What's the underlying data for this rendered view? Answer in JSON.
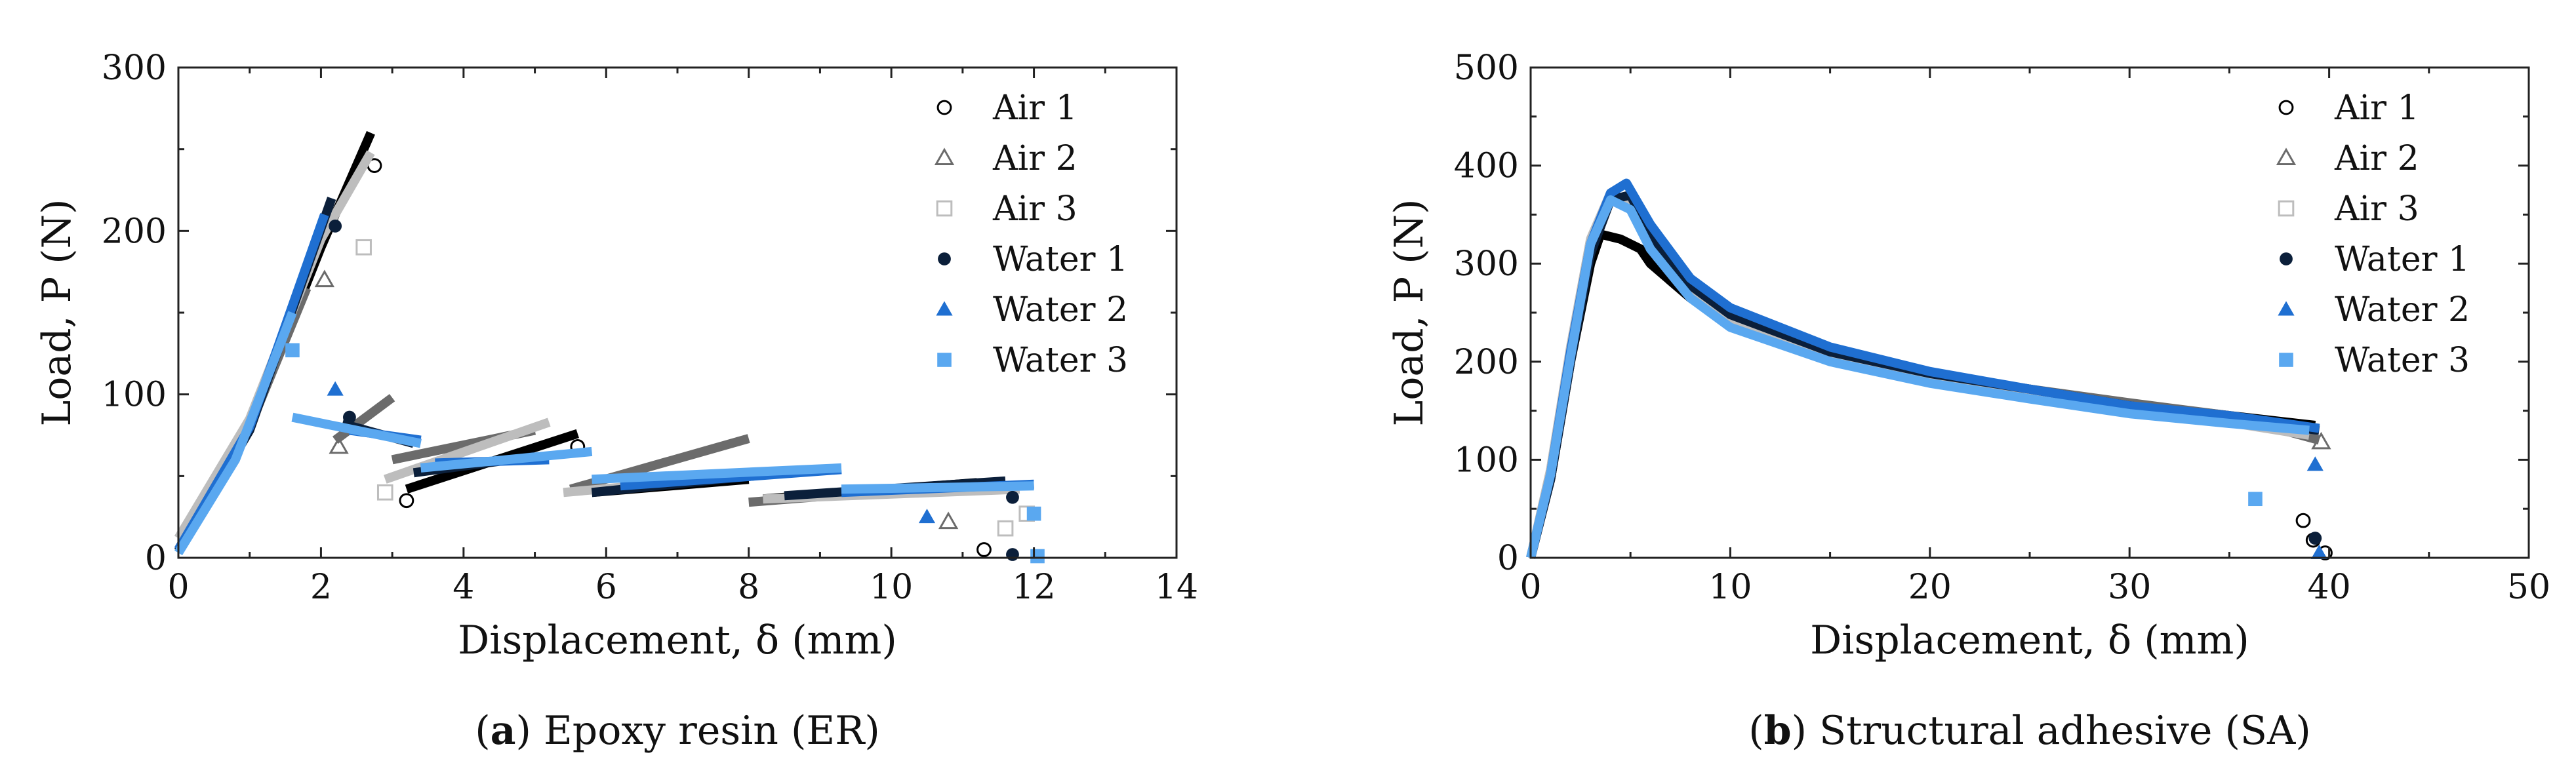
{
  "chart_data": [
    {
      "type": "line",
      "panel": "a",
      "caption": {
        "letter": "a",
        "text": " Epoxy resin (ER)"
      },
      "xlabel": "Displacement, δ (mm)",
      "ylabel": "Load, P (N)",
      "xlim": [
        0,
        14
      ],
      "ylim": [
        0,
        300
      ],
      "xticks": [
        0,
        2,
        4,
        6,
        8,
        10,
        12,
        14
      ],
      "yticks": [
        0,
        100,
        200,
        300
      ],
      "legend_position": "top-right",
      "grid": false,
      "series": [
        {
          "name": "Air 1",
          "color": "#000000",
          "marker": "open-circle",
          "segments": [
            [
              [
                0,
                5
              ],
              [
                1.0,
                80
              ],
              [
                2.0,
                190
              ],
              [
                2.7,
                260
              ]
            ],
            [
              [
                3.2,
                42
              ],
              [
                5.6,
                76
              ]
            ],
            [
              [
                5.8,
                40
              ],
              [
                8.0,
                48
              ]
            ],
            [
              [
                8.2,
                36
              ],
              [
                11.2,
                46
              ]
            ]
          ],
          "markers": [
            [
              2.75,
              240
            ],
            [
              3.2,
              35
            ],
            [
              5.6,
              68
            ],
            [
              11.3,
              5
            ]
          ]
        },
        {
          "name": "Air 2",
          "color": "#6b6b6b",
          "marker": "open-triangle",
          "segments": [
            [
              [
                0,
                4
              ],
              [
                1.0,
                80
              ],
              [
                1.8,
                165
              ]
            ],
            [
              [
                2.2,
                72
              ],
              [
                3.0,
                98
              ]
            ],
            [
              [
                3.0,
                60
              ],
              [
                5.0,
                78
              ]
            ],
            [
              [
                5.5,
                42
              ],
              [
                8.0,
                73
              ]
            ],
            [
              [
                8.0,
                34
              ],
              [
                11.2,
                45
              ]
            ]
          ],
          "markers": [
            [
              2.05,
              170
            ],
            [
              2.25,
              68
            ],
            [
              10.8,
              22
            ]
          ]
        },
        {
          "name": "Air 3",
          "color": "#bdbdbd",
          "marker": "open-square",
          "segments": [
            [
              [
                0,
                12
              ],
              [
                1.0,
                85
              ],
              [
                2.0,
                195
              ],
              [
                2.7,
                248
              ]
            ],
            [
              [
                2.9,
                48
              ],
              [
                5.2,
                83
              ]
            ],
            [
              [
                5.4,
                40
              ],
              [
                8.0,
                50
              ]
            ],
            [
              [
                8.2,
                36
              ],
              [
                11.8,
                42
              ]
            ]
          ],
          "markers": [
            [
              2.6,
              190
            ],
            [
              2.9,
              40
            ],
            [
              11.6,
              18
            ],
            [
              11.9,
              27
            ]
          ]
        },
        {
          "name": "Water 1",
          "color": "#0b1f3a",
          "marker": "filled-circle",
          "segments": [
            [
              [
                0,
                4
              ],
              [
                1.0,
                78
              ],
              [
                2.15,
                220
              ]
            ],
            [
              [
                2.3,
                82
              ],
              [
                3.3,
                70
              ]
            ],
            [
              [
                3.3,
                52
              ],
              [
                5.0,
                62
              ]
            ],
            [
              [
                5.8,
                40
              ],
              [
                8.5,
                52
              ]
            ],
            [
              [
                8.5,
                38
              ],
              [
                11.6,
                47
              ]
            ]
          ],
          "markers": [
            [
              2.2,
              203
            ],
            [
              2.4,
              86
            ],
            [
              11.7,
              37
            ],
            [
              11.7,
              2
            ]
          ]
        },
        {
          "name": "Water 2",
          "color": "#1f6fd1",
          "marker": "filled-triangle",
          "segments": [
            [
              [
                0,
                5
              ],
              [
                1.0,
                80
              ],
              [
                2.05,
                210
              ]
            ],
            [
              [
                2.4,
                78
              ],
              [
                3.4,
                72
              ]
            ],
            [
              [
                3.6,
                58
              ],
              [
                5.2,
                60
              ]
            ],
            [
              [
                6.2,
                44
              ],
              [
                9.3,
                54
              ]
            ],
            [
              [
                9.3,
                40
              ],
              [
                12.0,
                45
              ]
            ]
          ],
          "markers": [
            [
              2.2,
              103
            ],
            [
              10.5,
              25
            ]
          ]
        },
        {
          "name": "Water 3",
          "color": "#5aa8f0",
          "marker": "filled-square",
          "segments": [
            [
              [
                0,
                3
              ],
              [
                0.8,
                60
              ],
              [
                1.6,
                150
              ]
            ],
            [
              [
                1.6,
                86
              ],
              [
                3.4,
                70
              ]
            ],
            [
              [
                3.4,
                55
              ],
              [
                5.8,
                65
              ]
            ],
            [
              [
                5.8,
                48
              ],
              [
                9.3,
                55
              ]
            ],
            [
              [
                9.3,
                42
              ],
              [
                12.0,
                44
              ]
            ]
          ],
          "markers": [
            [
              1.6,
              127
            ],
            [
              12.0,
              27
            ],
            [
              12.05,
              1
            ]
          ]
        }
      ]
    },
    {
      "type": "line",
      "panel": "b",
      "caption": {
        "letter": "b",
        "text": " Structural adhesive (SA)"
      },
      "xlabel": "Displacement, δ (mm)",
      "ylabel": "Load, P (N)",
      "xlim": [
        0,
        50
      ],
      "ylim": [
        0,
        500
      ],
      "xticks": [
        0,
        10,
        20,
        30,
        40,
        50
      ],
      "yticks": [
        0,
        100,
        200,
        300,
        400,
        500
      ],
      "legend_position": "top-right",
      "grid": false,
      "series": [
        {
          "name": "Air 1",
          "color": "#000000",
          "marker": "open-circle",
          "segments": [
            [
              [
                0,
                0
              ],
              [
                1,
                80
              ],
              [
                2,
                200
              ],
              [
                3,
                300
              ],
              [
                3.5,
                330
              ],
              [
                4.5,
                325
              ],
              [
                5.5,
                315
              ],
              [
                6,
                300
              ],
              [
                8,
                265
              ],
              [
                10,
                240
              ],
              [
                15,
                205
              ],
              [
                20,
                185
              ],
              [
                25,
                170
              ],
              [
                30,
                157
              ],
              [
                35,
                145
              ],
              [
                39.3,
                135
              ]
            ]
          ],
          "markers": [
            [
              38.7,
              38
            ],
            [
              39.2,
              18
            ],
            [
              39.8,
              5
            ]
          ]
        },
        {
          "name": "Air 2",
          "color": "#6b6b6b",
          "marker": "open-triangle",
          "segments": [
            [
              [
                0,
                0
              ],
              [
                1,
                85
              ],
              [
                2,
                210
              ],
              [
                3,
                320
              ],
              [
                4,
                370
              ],
              [
                5,
                365
              ],
              [
                6,
                325
              ],
              [
                8,
                275
              ],
              [
                10,
                245
              ],
              [
                15,
                210
              ],
              [
                20,
                188
              ],
              [
                25,
                172
              ],
              [
                30,
                158
              ],
              [
                35,
                145
              ],
              [
                39.5,
                120
              ]
            ]
          ],
          "markers": [
            [
              39.6,
              118
            ]
          ]
        },
        {
          "name": "Air 3",
          "color": "#bdbdbd",
          "marker": "open-square",
          "segments": [
            [
              [
                0,
                0
              ],
              [
                1,
                90
              ],
              [
                2,
                215
              ],
              [
                3,
                325
              ],
              [
                4,
                372
              ],
              [
                5,
                360
              ],
              [
                6,
                320
              ],
              [
                8,
                270
              ],
              [
                10,
                240
              ],
              [
                15,
                205
              ],
              [
                20,
                182
              ],
              [
                25,
                165
              ],
              [
                30,
                150
              ],
              [
                35,
                138
              ],
              [
                39,
                125
              ]
            ]
          ],
          "markers": []
        },
        {
          "name": "Water 1",
          "color": "#0b1f3a",
          "marker": "filled-circle",
          "segments": [
            [
              [
                0,
                0
              ],
              [
                1,
                80
              ],
              [
                2,
                200
              ],
              [
                3,
                310
              ],
              [
                4,
                365
              ],
              [
                5,
                370
              ],
              [
                6,
                330
              ],
              [
                8,
                278
              ],
              [
                10,
                248
              ],
              [
                15,
                210
              ],
              [
                20,
                188
              ],
              [
                25,
                172
              ],
              [
                30,
                155
              ],
              [
                35,
                142
              ],
              [
                39.5,
                130
              ]
            ]
          ],
          "markers": [
            [
              39.3,
              20
            ]
          ]
        },
        {
          "name": "Water 2",
          "color": "#1f6fd1",
          "marker": "filled-triangle",
          "segments": [
            [
              [
                0,
                0
              ],
              [
                1,
                85
              ],
              [
                2,
                210
              ],
              [
                3,
                320
              ],
              [
                4,
                372
              ],
              [
                4.8,
                382
              ],
              [
                6,
                340
              ],
              [
                8,
                285
              ],
              [
                10,
                255
              ],
              [
                15,
                215
              ],
              [
                20,
                190
              ],
              [
                25,
                172
              ],
              [
                30,
                155
              ],
              [
                35,
                145
              ],
              [
                39.5,
                132
              ]
            ]
          ],
          "markers": [
            [
              39.3,
              95
            ],
            [
              39.5,
              5
            ]
          ]
        },
        {
          "name": "Water 3",
          "color": "#5aa8f0",
          "marker": "filled-square",
          "segments": [
            [
              [
                0,
                0
              ],
              [
                1,
                85
              ],
              [
                2,
                205
              ],
              [
                3,
                320
              ],
              [
                4,
                365
              ],
              [
                5,
                355
              ],
              [
                6,
                315
              ],
              [
                8,
                265
              ],
              [
                10,
                235
              ],
              [
                15,
                200
              ],
              [
                20,
                178
              ],
              [
                25,
                162
              ],
              [
                30,
                147
              ],
              [
                35,
                137
              ],
              [
                39,
                130
              ]
            ]
          ],
          "markers": [
            [
              36.3,
              60
            ]
          ]
        }
      ]
    }
  ]
}
